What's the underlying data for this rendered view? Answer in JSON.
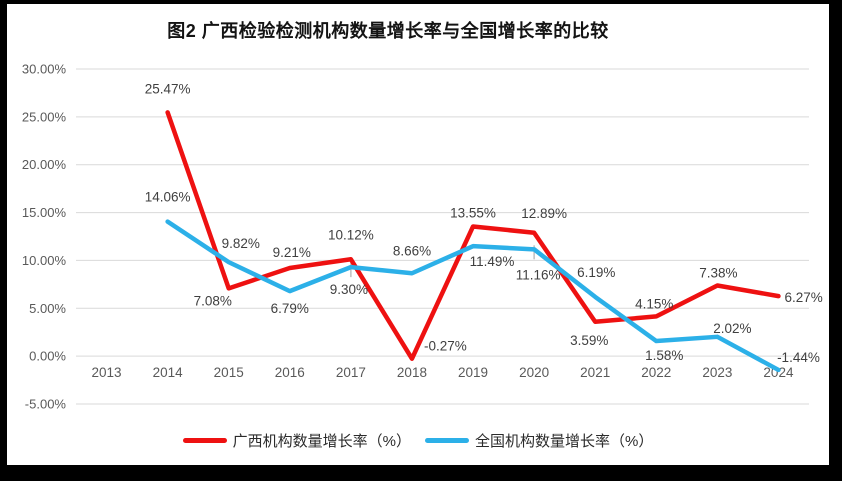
{
  "title": "图2 广西检验检测机构数量增长率与全国增长率的比较",
  "chart_data": {
    "type": "line",
    "categories": [
      "2013",
      "2014",
      "2015",
      "2016",
      "2017",
      "2018",
      "2019",
      "2020",
      "2021",
      "2022",
      "2023",
      "2024"
    ],
    "series": [
      {
        "name": "广西机构数量增长率（%）",
        "color": "#EE1111",
        "start_index": 1,
        "values": [
          25.47,
          7.08,
          9.21,
          10.12,
          -0.27,
          13.55,
          12.89,
          3.59,
          4.15,
          7.38,
          6.27
        ],
        "labels": [
          "25.47%",
          "7.08%",
          "9.21%",
          "10.12%",
          "-0.27%",
          "13.55%",
          "12.89%",
          "3.59%",
          "4.15%",
          "7.38%",
          "6.27%"
        ],
        "label_offsets": [
          [
            0,
            -19,
            "middle"
          ],
          [
            -16,
            17,
            "middle"
          ],
          [
            2,
            -11,
            "middle"
          ],
          [
            0,
            -20,
            "middle"
          ],
          [
            12,
            -8,
            "start"
          ],
          [
            0,
            -9,
            "middle"
          ],
          [
            10,
            -15,
            "middle"
          ],
          [
            -6,
            23,
            "middle"
          ],
          [
            -2,
            -8,
            "middle"
          ],
          [
            1,
            -8,
            "middle"
          ],
          [
            6,
            6,
            "start"
          ]
        ]
      },
      {
        "name": "全国机构数量增长率（%）",
        "color": "#2CB0E8",
        "start_index": 1,
        "values": [
          14.06,
          9.82,
          6.79,
          9.3,
          8.66,
          11.49,
          11.16,
          6.19,
          1.58,
          2.02,
          -1.44
        ],
        "labels": [
          "14.06%",
          "9.82%",
          "6.79%",
          "9.30%",
          "8.66%",
          "11.49%",
          "11.16%",
          "6.19%",
          "1.58%",
          "2.02%",
          "-1.44%"
        ],
        "label_offsets": [
          [
            0,
            -20,
            "middle"
          ],
          [
            12,
            -14,
            "middle"
          ],
          [
            0,
            22,
            "middle"
          ],
          [
            -2,
            27,
            "middle"
          ],
          [
            0,
            -18,
            "middle"
          ],
          [
            19,
            20,
            "middle"
          ],
          [
            4,
            30,
            "middle"
          ],
          [
            1,
            -20,
            "middle"
          ],
          [
            8,
            19,
            "middle"
          ],
          [
            15,
            -4,
            "middle"
          ],
          [
            20,
            -8,
            "middle"
          ]
        ]
      }
    ],
    "y_axis": {
      "min": -5,
      "max": 30,
      "step": 5,
      "tick_labels_top_to_bottom": [
        "30.00%",
        "25.00%",
        "20.00%",
        "15.00%",
        "10.00%",
        "5.00%",
        "0.00%",
        "-5.00%"
      ]
    },
    "grid": true,
    "legend_position": "bottom",
    "leader_ticks": [
      {
        "series": 1,
        "point": 3
      },
      {
        "series": 1,
        "point": 6
      }
    ],
    "colors": {
      "gridline": "#D9D9D9",
      "axis_text": "#595959",
      "data_label_text": "#3F3F3F",
      "leader_tick": "#BFBFBF"
    }
  },
  "legend": {
    "items": [
      {
        "label": "广西机构数量增长率（%）",
        "color": "#EE1111"
      },
      {
        "label": "全国机构数量增长率（%）",
        "color": "#2CB0E8"
      }
    ]
  }
}
